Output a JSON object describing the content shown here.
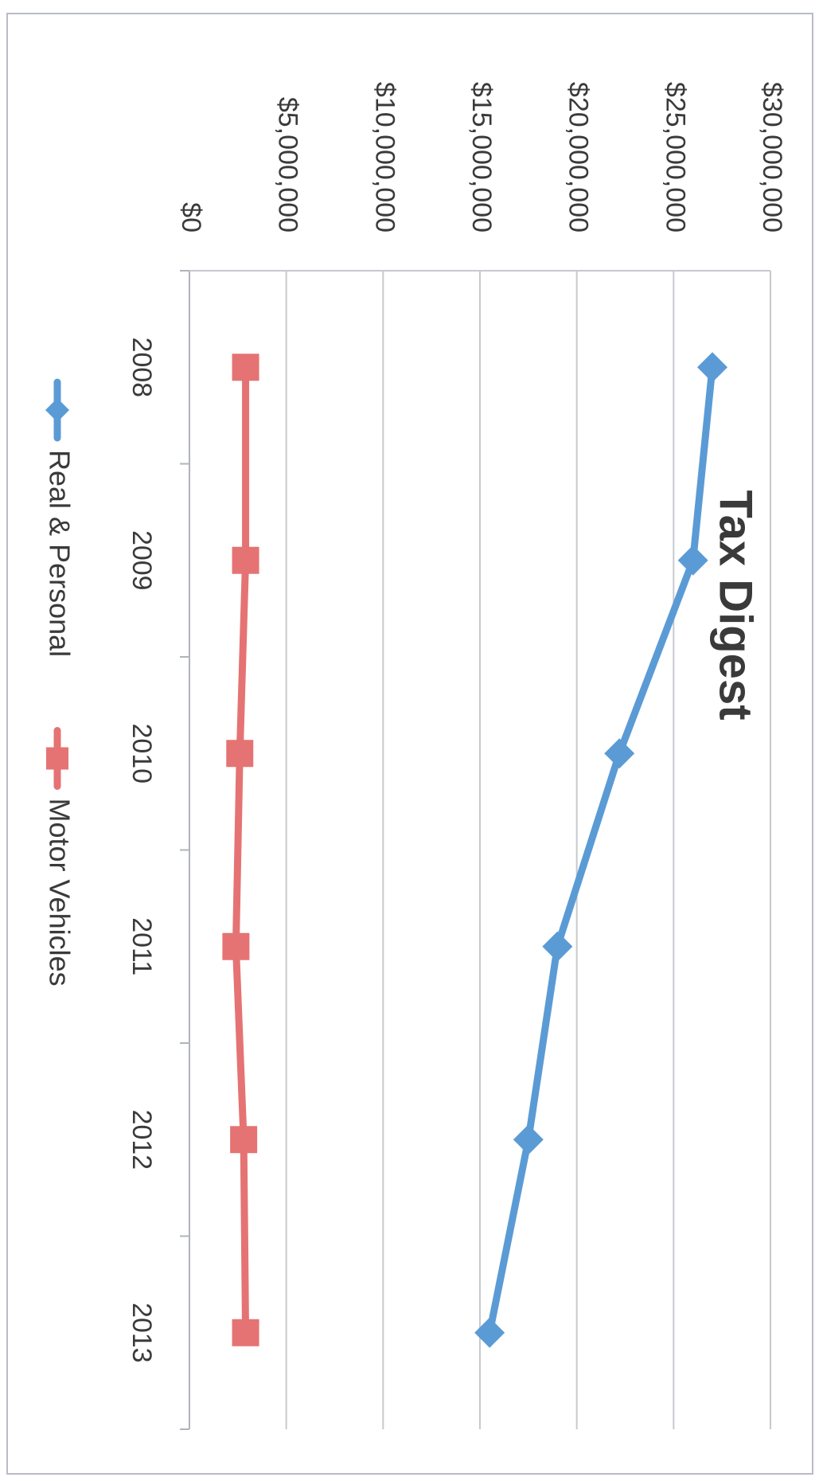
{
  "chart_data": {
    "type": "line",
    "title": "Tax Digest",
    "xlabel": "",
    "ylabel": "",
    "categories": [
      "2008",
      "2009",
      "2010",
      "2011",
      "2012",
      "2013"
    ],
    "y_ticks": [
      "$0",
      "$5,000,000",
      "$10,000,000",
      "$15,000,000",
      "$20,000,000",
      "$25,000,000",
      "$30,000,000"
    ],
    "ylim": [
      0,
      30000000
    ],
    "grid": true,
    "legend_position": "bottom",
    "orientation": "rotated 90 degrees clockwise",
    "series": [
      {
        "name": "Real & Personal",
        "color": "#5b9bd5",
        "marker": "diamond",
        "values": [
          27000000,
          26000000,
          22200000,
          19000000,
          17500000,
          15500000
        ]
      },
      {
        "name": "Motor Vehicles",
        "color": "#e57373",
        "marker": "square",
        "values": [
          2900000,
          2900000,
          2600000,
          2400000,
          2800000,
          2900000
        ]
      }
    ]
  }
}
